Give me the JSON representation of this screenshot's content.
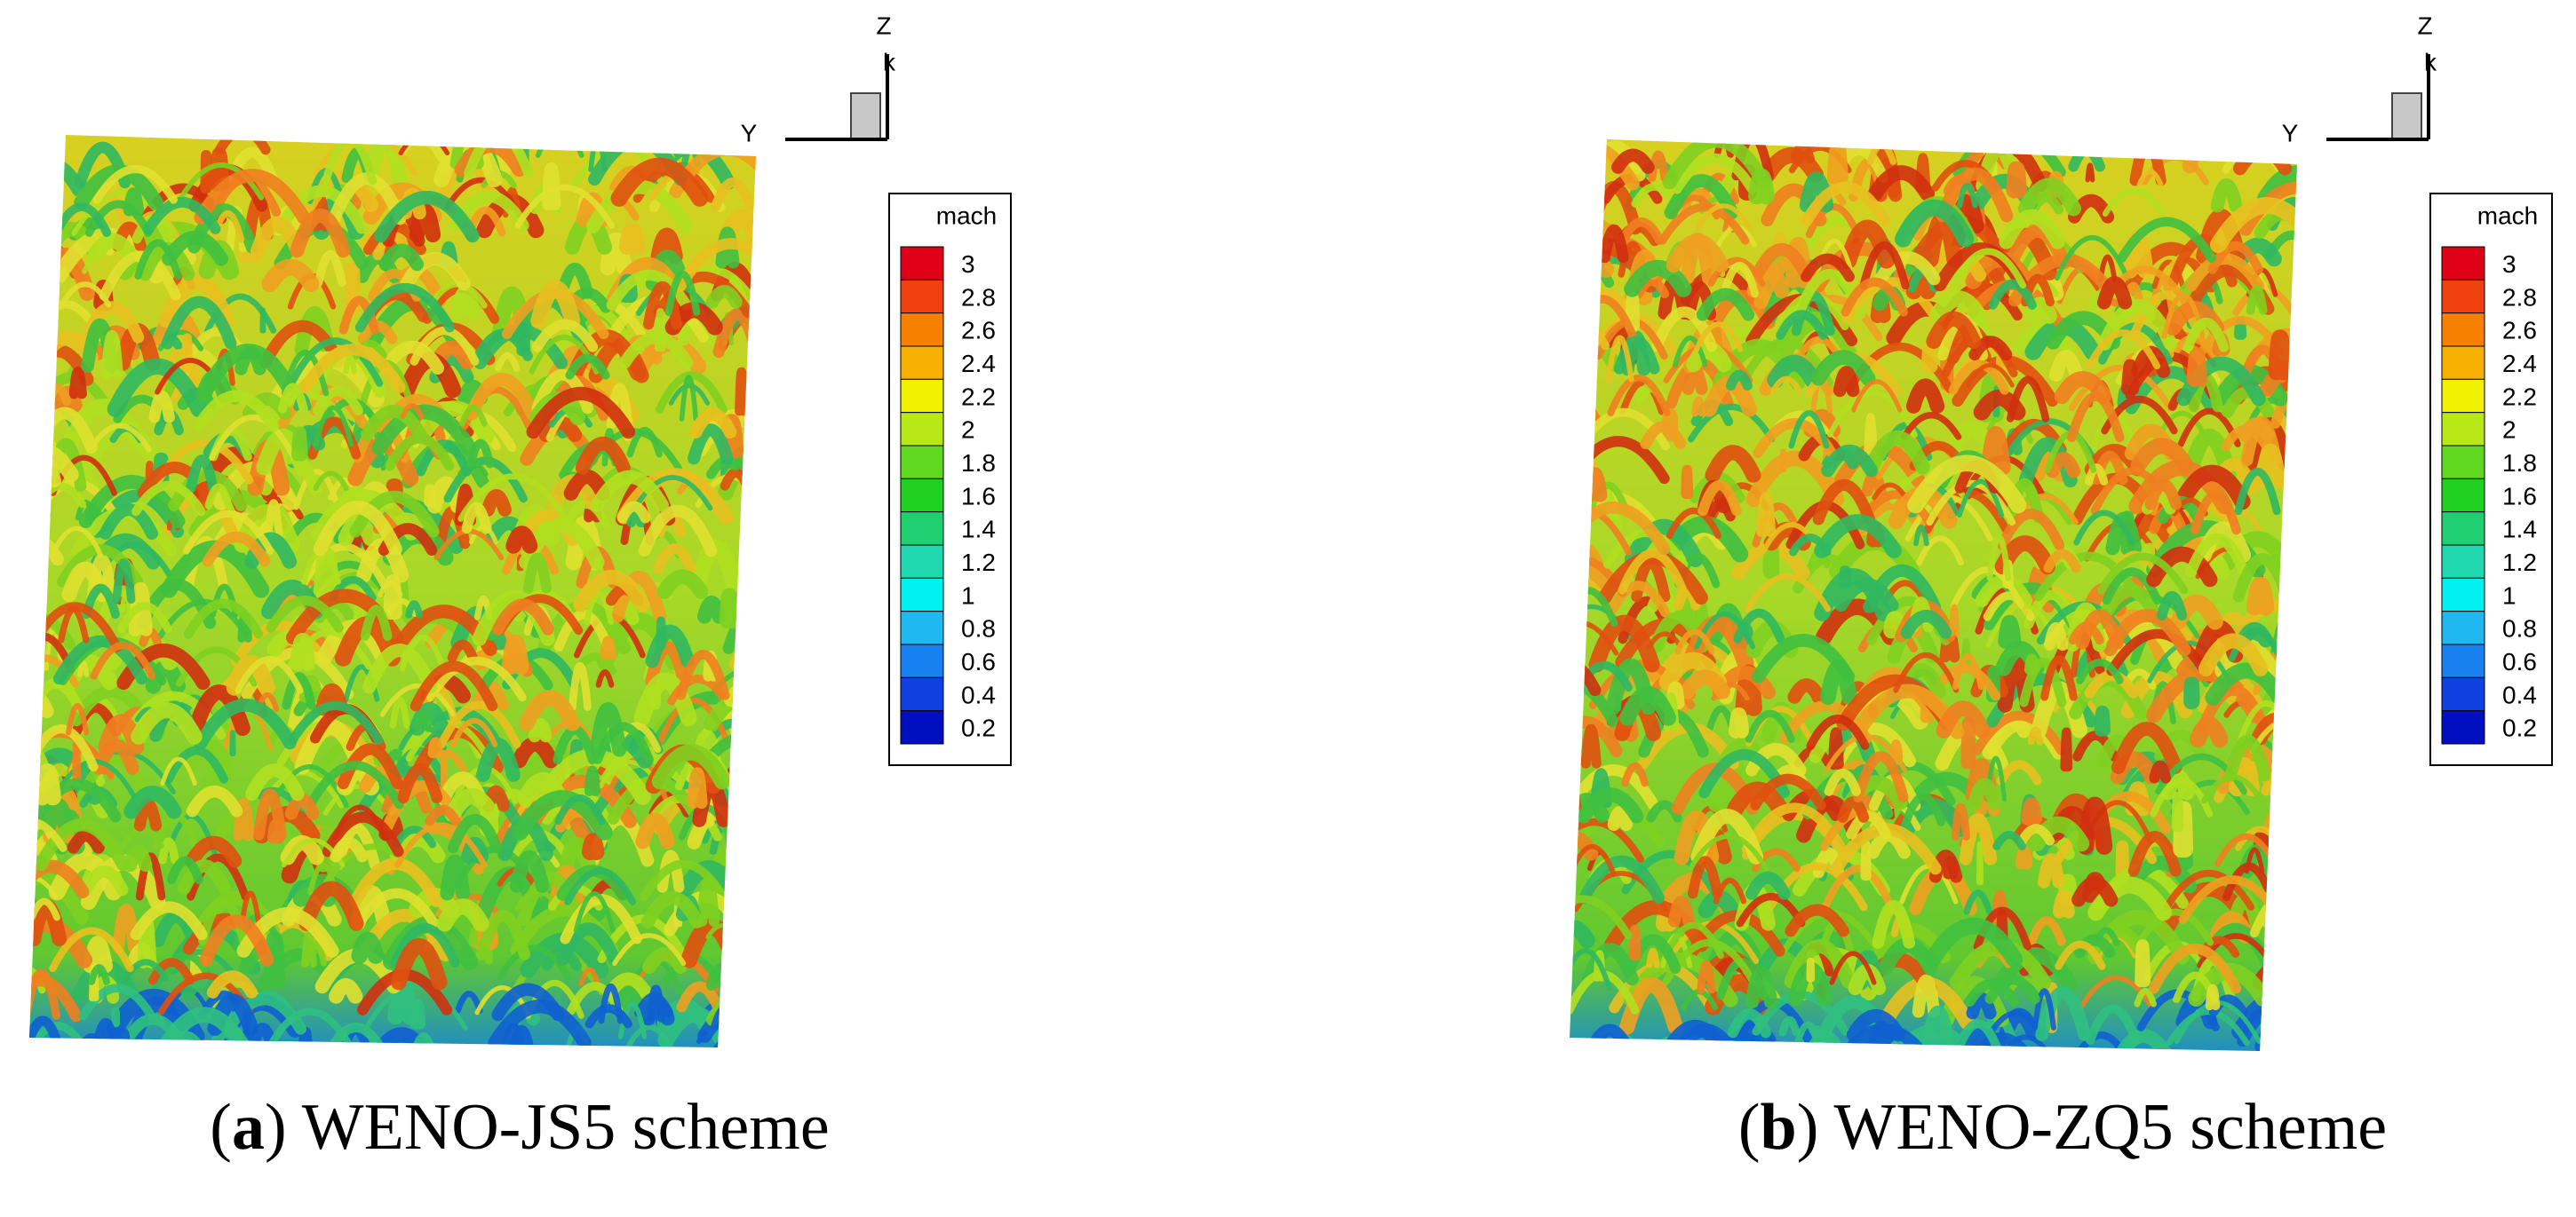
{
  "panels": [
    {
      "caption": [
        "(",
        "a",
        ") WENO-JS5 scheme"
      ],
      "axes": {
        "z": "Z",
        "k": "k",
        "y": "Y"
      },
      "legend": {
        "title": "mach",
        "levels": [
          3,
          2.8,
          2.6,
          2.4,
          2.2,
          2,
          1.8,
          1.6,
          1.4,
          1.2,
          1,
          0.8,
          0.6,
          0.4,
          0.2
        ],
        "colors": [
          "#e00018",
          "#f04010",
          "#f88000",
          "#f8b000",
          "#f0f000",
          "#b8e818",
          "#60d820",
          "#20d020",
          "#20d070",
          "#20d8b0",
          "#00f0f0",
          "#20b8f0",
          "#1880f0",
          "#1040e0",
          "#0010c0"
        ]
      }
    },
    {
      "caption": [
        "(",
        "b",
        ") WENO-ZQ5 scheme"
      ],
      "axes": {
        "z": "Z",
        "k": "k",
        "y": "Y"
      },
      "legend": {
        "title": "mach",
        "levels": [
          3,
          2.8,
          2.6,
          2.4,
          2.2,
          2,
          1.8,
          1.6,
          1.4,
          1.2,
          1,
          0.8,
          0.6,
          0.4,
          0.2
        ],
        "colors": [
          "#e00018",
          "#f04010",
          "#f88000",
          "#f8b000",
          "#f0f000",
          "#b8e818",
          "#60d820",
          "#20d020",
          "#20d070",
          "#20d8b0",
          "#00f0f0",
          "#20b8f0",
          "#1880f0",
          "#1040e0",
          "#0010c0"
        ]
      }
    }
  ]
}
